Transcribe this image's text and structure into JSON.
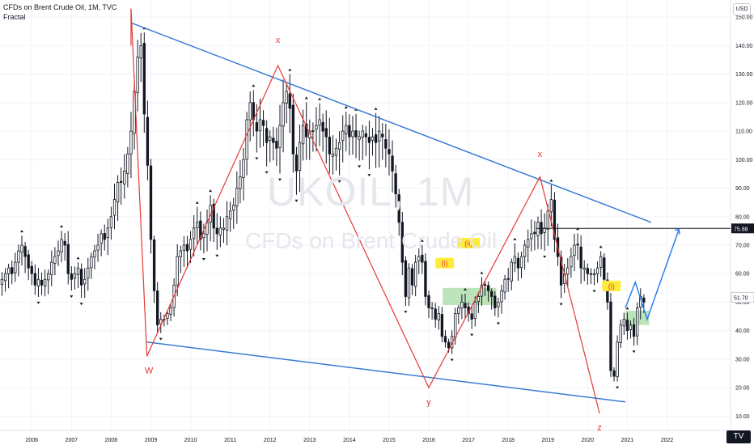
{
  "header": {
    "title": "CFDs on Brent Crude Oil, 1M, TVC",
    "indicator": "Fractal"
  },
  "currency_badge": "USD",
  "watermark": {
    "symbol": "UKOIL, 1M",
    "description": "CFDs on Brent Crude Oil"
  },
  "logo_text": "TV",
  "colors": {
    "wave": "#e53935",
    "trendline": "#3a7bd5",
    "projection": "#2f80ed",
    "zone": "#8fd18a",
    "label_bg": "#ffeb3b",
    "price_badge": "#131722"
  },
  "chart_data": {
    "type": "candlestick",
    "timeframe": "1M",
    "x_range": [
      2005.2,
      2023.6
    ],
    "ylim": [
      5,
      156
    ],
    "y_ticks": [
      10,
      20,
      30,
      40,
      50,
      60,
      70,
      80,
      90,
      100,
      110,
      120,
      130,
      140,
      150
    ],
    "y_tick_labels": [
      "10.00",
      "20.00",
      "30.00",
      "40.00",
      "50.00",
      "60.00",
      "70.00",
      "80.00",
      "90.00",
      "100.00",
      "110.00",
      "120.00",
      "130.00",
      "140.00",
      "150.00"
    ],
    "x_ticks": [
      2006,
      2007,
      2008,
      2009,
      2010,
      2011,
      2012,
      2013,
      2014,
      2015,
      2016,
      2017,
      2018,
      2019,
      2020,
      2021,
      2022
    ],
    "x_tick_labels": [
      "2006",
      "2007",
      "2008",
      "2009",
      "2010",
      "2011",
      "2012",
      "2013",
      "2014",
      "2015",
      "2016",
      "2017",
      "2018",
      "2019",
      "2020",
      "2021",
      "2022"
    ],
    "price_marks": [
      {
        "label": "75.88",
        "value": 75.88,
        "style": "dark"
      },
      {
        "label": "51.70",
        "value": 51.7,
        "style": "light"
      }
    ],
    "monthly_closes": [
      58,
      60,
      62,
      60,
      64,
      68,
      70,
      66,
      62,
      60,
      56,
      58,
      56,
      58,
      60,
      64,
      66,
      68,
      72,
      70,
      60,
      58,
      60,
      62,
      56,
      58,
      62,
      66,
      68,
      70,
      74,
      72,
      76,
      80,
      86,
      92,
      92,
      96,
      102,
      110,
      124,
      136,
      140,
      116,
      98,
      72,
      54,
      42,
      44,
      44,
      46,
      48,
      56,
      66,
      68,
      70,
      68,
      72,
      76,
      78,
      72,
      74,
      78,
      84,
      76,
      74,
      76,
      76,
      80,
      82,
      84,
      90,
      94,
      100,
      114,
      120,
      114,
      110,
      114,
      112,
      106,
      108,
      106,
      104,
      112,
      120,
      124,
      118,
      102,
      96,
      106,
      112,
      108,
      110,
      110,
      112,
      114,
      110,
      108,
      102,
      102,
      104,
      106,
      110,
      112,
      108,
      110,
      108,
      108,
      110,
      108,
      106,
      108,
      106,
      110,
      108,
      104,
      102,
      96,
      88,
      78,
      64,
      52,
      62,
      56,
      64,
      66,
      64,
      52,
      48,
      48,
      44,
      46,
      38,
      36,
      34,
      38,
      46,
      48,
      50,
      48,
      46,
      44,
      50,
      52,
      56,
      56,
      54,
      52,
      48,
      50,
      54,
      58,
      58,
      64,
      66,
      62,
      66,
      70,
      72,
      74,
      74,
      78,
      74,
      76,
      82,
      86,
      72,
      66,
      56,
      60,
      62,
      66,
      70,
      70,
      62,
      62,
      60,
      60,
      60,
      62,
      66,
      58,
      50,
      26,
      24,
      36,
      42,
      44,
      40,
      42,
      38,
      48,
      52,
      50
    ]
  },
  "annotations": {
    "wave_labels": [
      "W",
      "x",
      "y",
      "x",
      "z"
    ],
    "boxed_labels": [
      "(i)",
      "(ii)",
      "(i)"
    ]
  }
}
